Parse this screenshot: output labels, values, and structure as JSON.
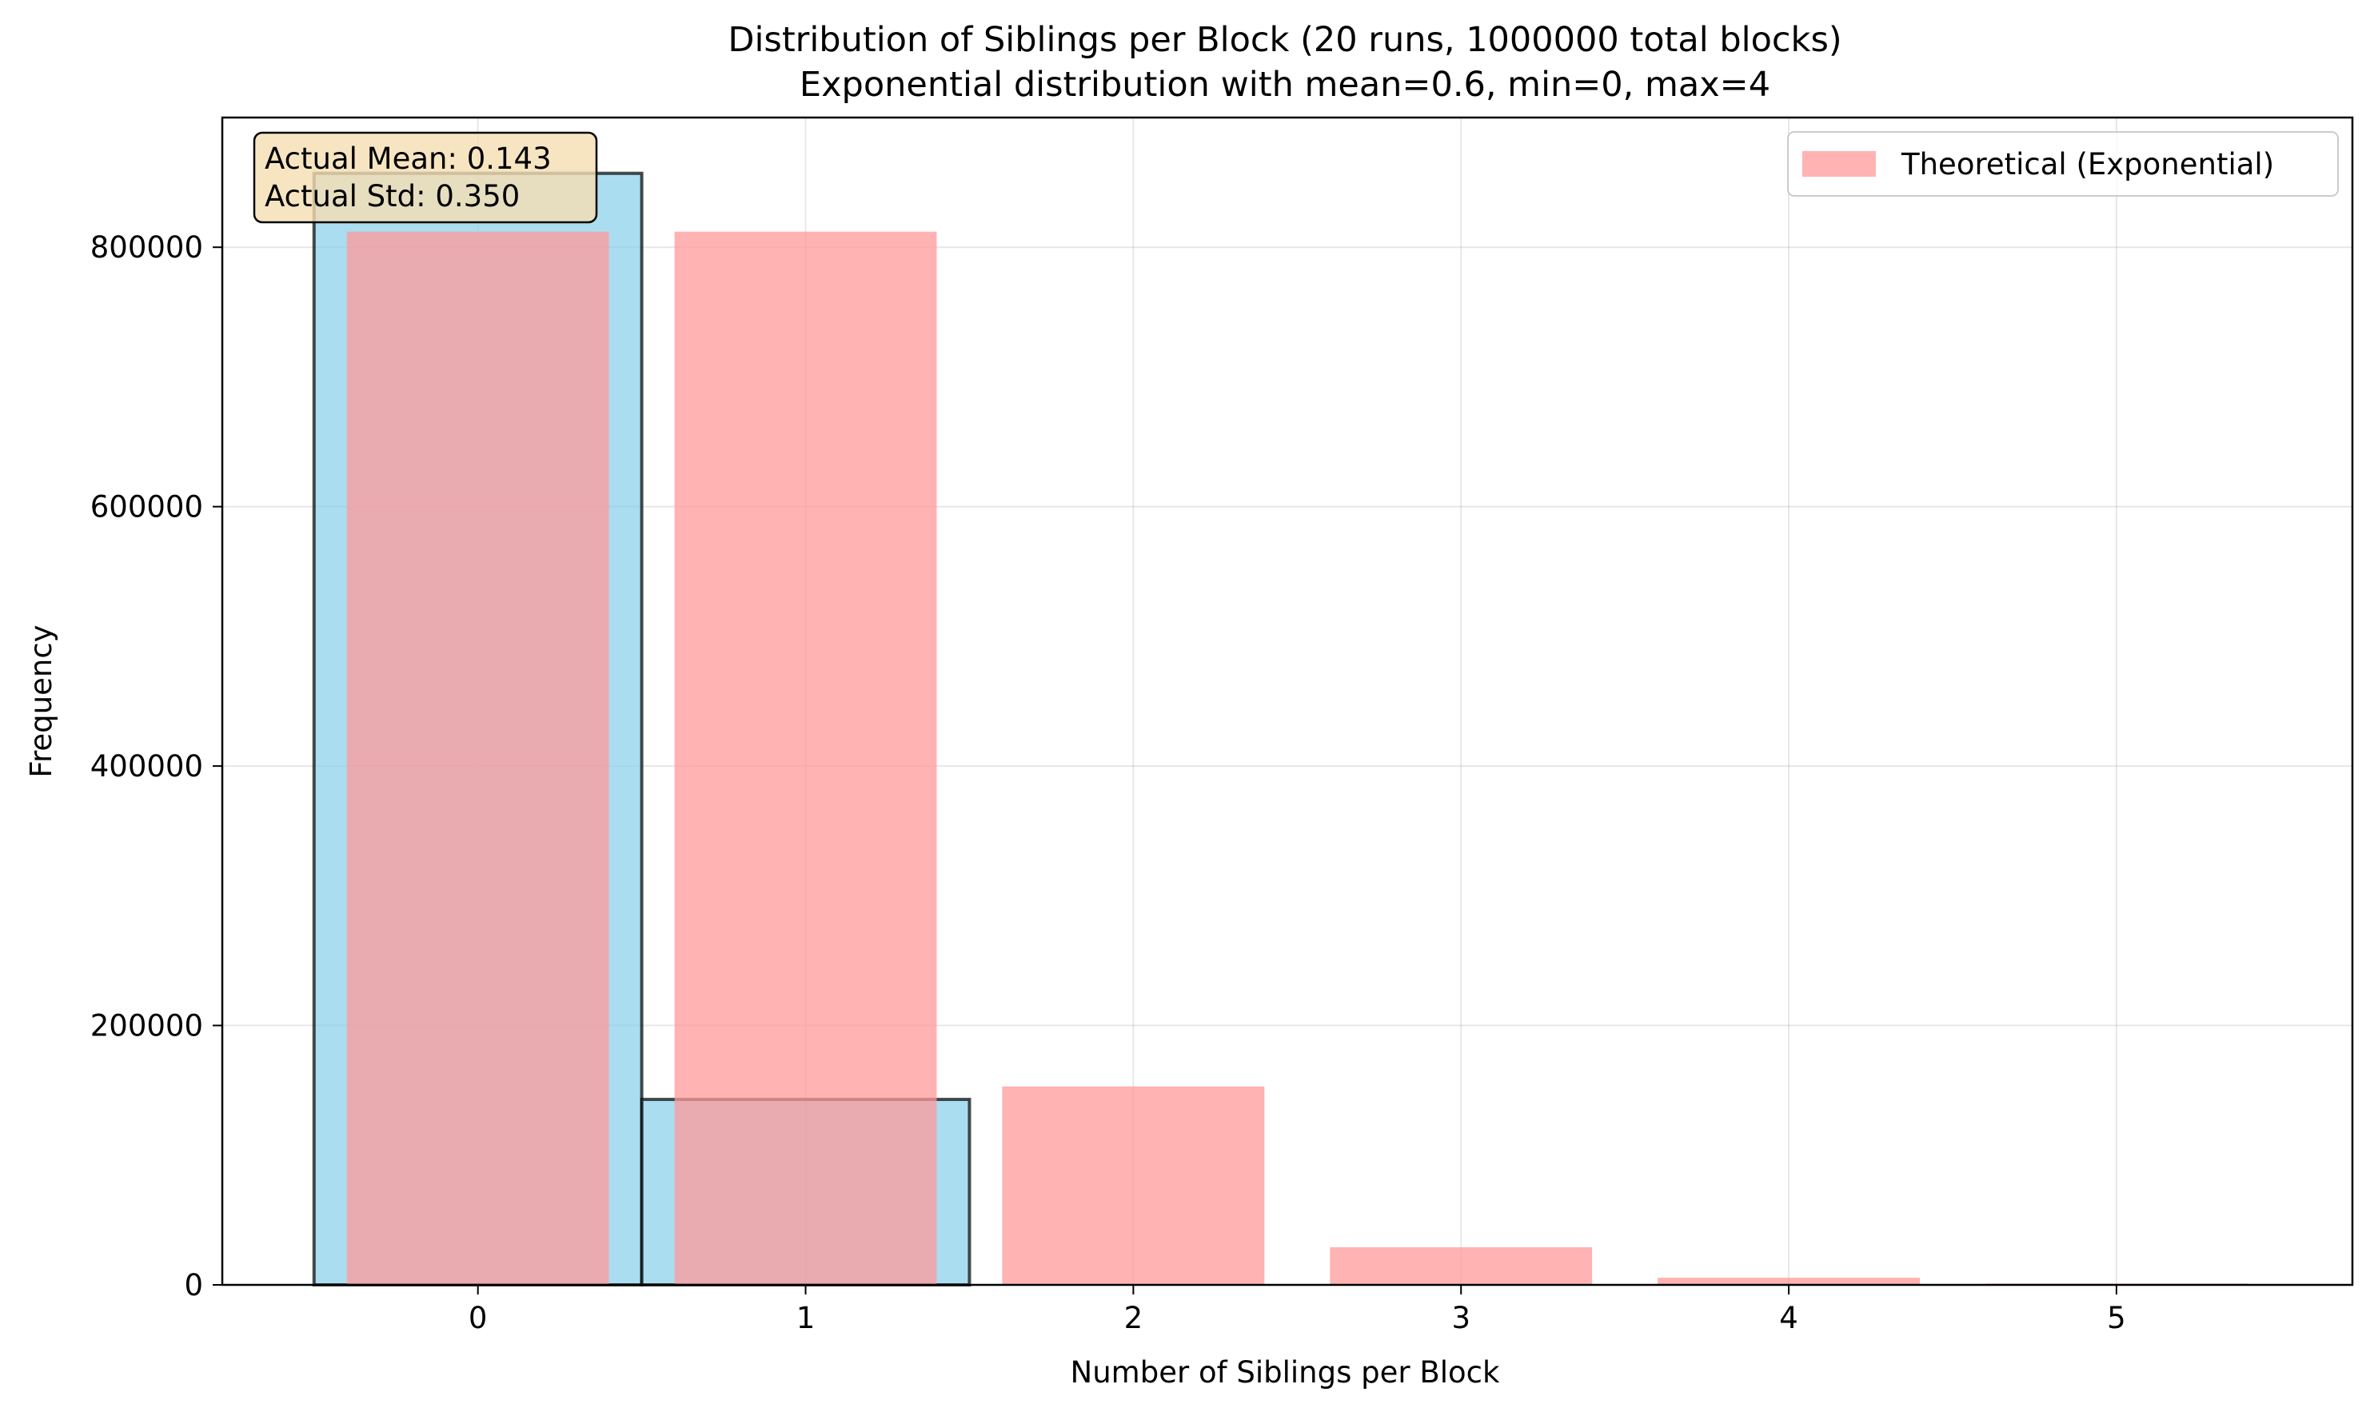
{
  "chart_data": {
    "type": "bar",
    "title": "Distribution of Siblings per Block (20 runs, 1000000 total blocks)",
    "subtitle": "Exponential distribution with mean=0.6, min=0, max=4",
    "xlabel": "Number of Siblings per Block",
    "ylabel": "Frequency",
    "xlim": [
      -0.78,
      5.72
    ],
    "ylim": [
      0,
      900000
    ],
    "x_ticks": [
      "0",
      "1",
      "2",
      "3",
      "4",
      "5"
    ],
    "x_tick_values": [
      0,
      1,
      2,
      3,
      4,
      5
    ],
    "y_ticks": [
      "0",
      "200000",
      "400000",
      "600000",
      "800000"
    ],
    "y_tick_values": [
      0,
      200000,
      400000,
      600000,
      800000
    ],
    "grid": true,
    "legend_position": "top-right",
    "series": [
      {
        "kind": "histogram",
        "color": "#87ceeb",
        "edge_color": "#000000",
        "bins": [
          {
            "from": -0.5,
            "to": 0.5,
            "value": 857000
          },
          {
            "from": 0.5,
            "to": 1.5,
            "value": 143000
          }
        ]
      },
      {
        "kind": "bar",
        "name": "Theoretical (Exponential)",
        "color": "#ff9999",
        "x": [
          0,
          1,
          2,
          3,
          4,
          5
        ],
        "values": [
          812000,
          812000,
          153000,
          29000,
          5500,
          1000
        ],
        "width": 0.8
      }
    ],
    "annotation": {
      "lines": [
        "Actual Mean: 0.143",
        "Actual Std: 0.350"
      ],
      "position": "top-left",
      "background": "#f5deb3"
    }
  }
}
